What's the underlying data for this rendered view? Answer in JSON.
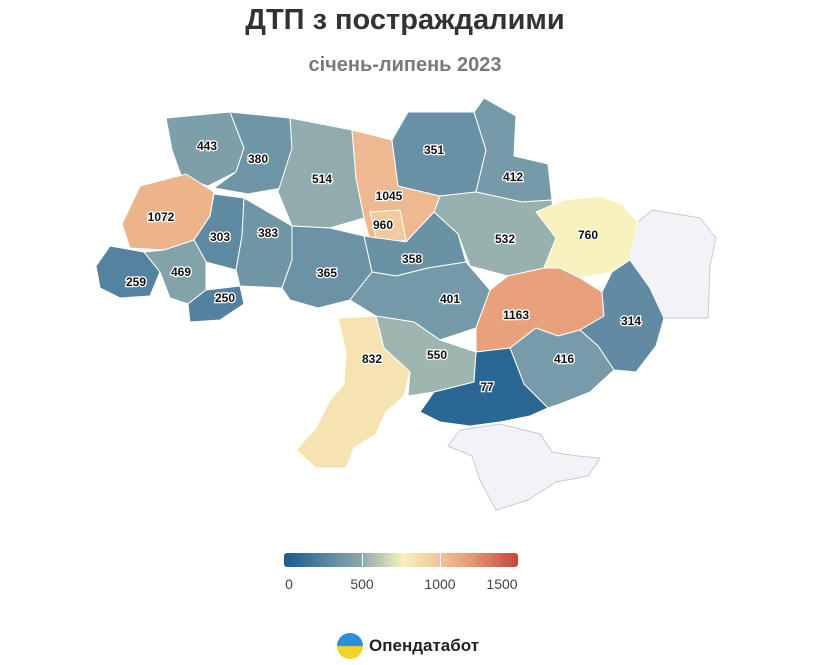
{
  "title": "ДТП з постраждалими",
  "subtitle": "січень-липень 2023",
  "chart_data": {
    "type": "choropleth",
    "title": "ДТП з постраждалими",
    "subtitle": "січень-липень 2023",
    "regions": [
      {
        "id": "volyn",
        "value": 443
      },
      {
        "id": "rivne",
        "value": 380
      },
      {
        "id": "zhytomyr",
        "value": 514
      },
      {
        "id": "kyiv-oblast",
        "value": 1045
      },
      {
        "id": "kyiv-city",
        "value": 960
      },
      {
        "id": "chernihiv",
        "value": 351
      },
      {
        "id": "sumy",
        "value": 412
      },
      {
        "id": "lviv",
        "value": 1072
      },
      {
        "id": "ternopil",
        "value": 303
      },
      {
        "id": "khmelnytskyi",
        "value": 383
      },
      {
        "id": "poltava",
        "value": 532
      },
      {
        "id": "kharkiv",
        "value": 760
      },
      {
        "id": "zakarpattia",
        "value": 259
      },
      {
        "id": "ivano-frankivsk",
        "value": 469
      },
      {
        "id": "chernivtsi",
        "value": 250
      },
      {
        "id": "vinnytsia",
        "value": 365
      },
      {
        "id": "cherkasy",
        "value": 358
      },
      {
        "id": "kirovohrad",
        "value": 401
      },
      {
        "id": "dnipropetrovsk",
        "value": 1163
      },
      {
        "id": "donetsk",
        "value": 314
      },
      {
        "id": "odesa",
        "value": 832
      },
      {
        "id": "mykolaiv",
        "value": 550
      },
      {
        "id": "zaporizhzhia",
        "value": 416
      },
      {
        "id": "kherson",
        "value": 77
      }
    ],
    "no_data_regions": [
      "luhansk",
      "crimea"
    ],
    "color_scale": {
      "min": 0,
      "max": 1500,
      "stops": [
        {
          "value": 0,
          "color": "#1a5b91"
        },
        {
          "value": 500,
          "color": "#8aa8ad"
        },
        {
          "value": 760,
          "color": "#f8f3be"
        },
        {
          "value": 1170,
          "color": "#e9a07c"
        },
        {
          "value": 1500,
          "color": "#c6473e"
        }
      ],
      "no_data_color": "#f2f3f7"
    },
    "legend": {
      "ticks": [
        {
          "value": 0,
          "label": "0"
        },
        {
          "value": 500,
          "label": "500"
        },
        {
          "value": 1000,
          "label": "1000"
        },
        {
          "value": 1500,
          "label": "1500"
        }
      ]
    }
  },
  "brand": {
    "name": "Опендатабот",
    "logo_icon": "opendatabot-logo-icon"
  }
}
